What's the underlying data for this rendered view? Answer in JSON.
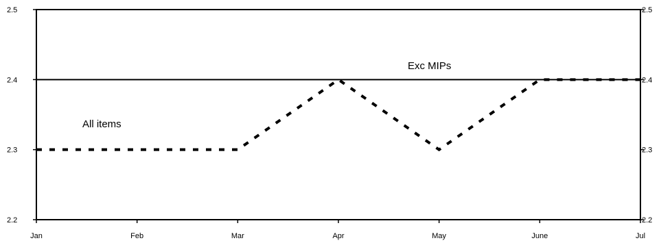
{
  "chart_data": {
    "type": "line",
    "categories": [
      "Jan",
      "Feb",
      "Mar",
      "Apr",
      "May",
      "June",
      "Jul"
    ],
    "ylim": [
      2.2,
      2.5
    ],
    "yticks": [
      "2.2",
      "2.3",
      "2.4",
      "2.5"
    ],
    "grid": false,
    "legend": "none",
    "secondary_axis": "right (mirrors left)",
    "series": [
      {
        "name": "Exc MIPs",
        "values": [
          2.4,
          2.4,
          2.4,
          2.4,
          2.4,
          2.4,
          2.4
        ],
        "style": "solid",
        "color": "#000000"
      },
      {
        "name": "All items",
        "values": [
          2.3,
          2.3,
          2.3,
          2.4,
          2.3,
          2.4,
          2.4
        ],
        "style": "dashed",
        "color": "#000000"
      }
    ],
    "annotations": [
      "Exc MIPs",
      "All items"
    ]
  }
}
